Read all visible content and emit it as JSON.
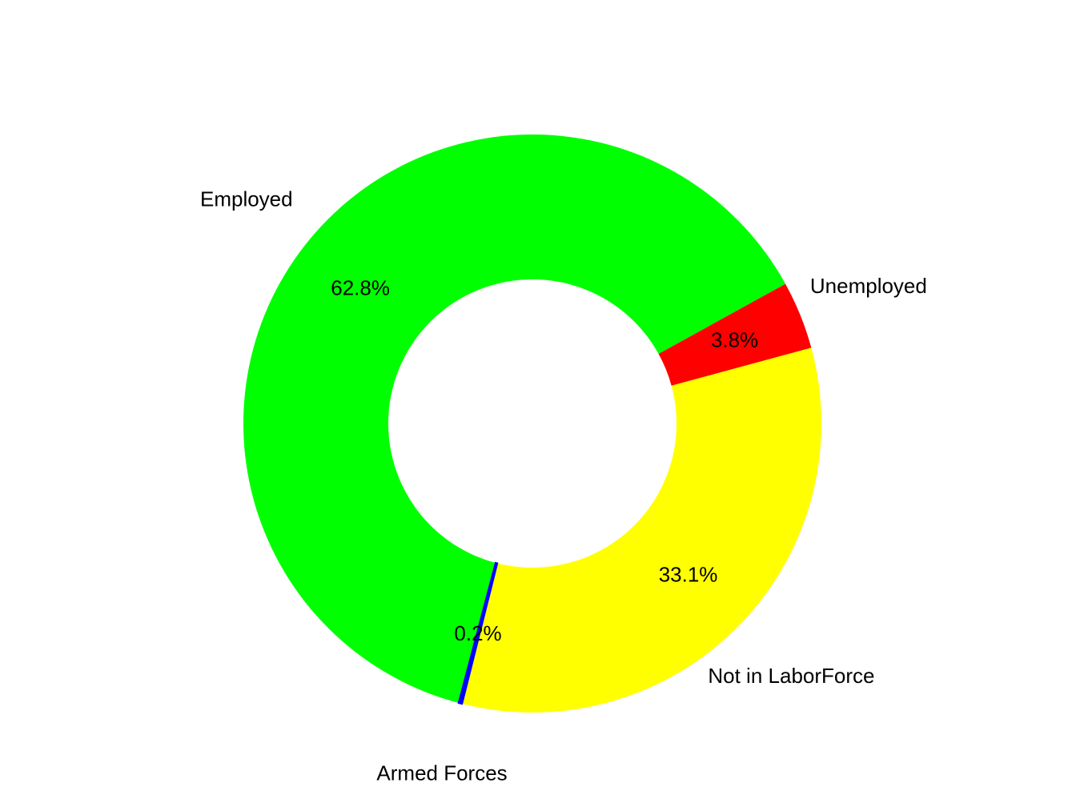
{
  "chart_data": {
    "type": "pie",
    "donut": true,
    "title": "",
    "slices": [
      {
        "name": "Employed",
        "value": 62.8,
        "percent_label": "62.8%",
        "color": "#00ff00"
      },
      {
        "name": "Unemployed",
        "value": 3.8,
        "percent_label": "3.8%",
        "color": "#ff0000"
      },
      {
        "name": "Not in LaborForce",
        "value": 33.1,
        "percent_label": "33.1%",
        "color": "#ffff00"
      },
      {
        "name": "Armed Forces",
        "value": 0.2,
        "percent_label": "0.2%",
        "color": "#0000ff"
      }
    ],
    "legend": "none",
    "labels_outside": true
  }
}
